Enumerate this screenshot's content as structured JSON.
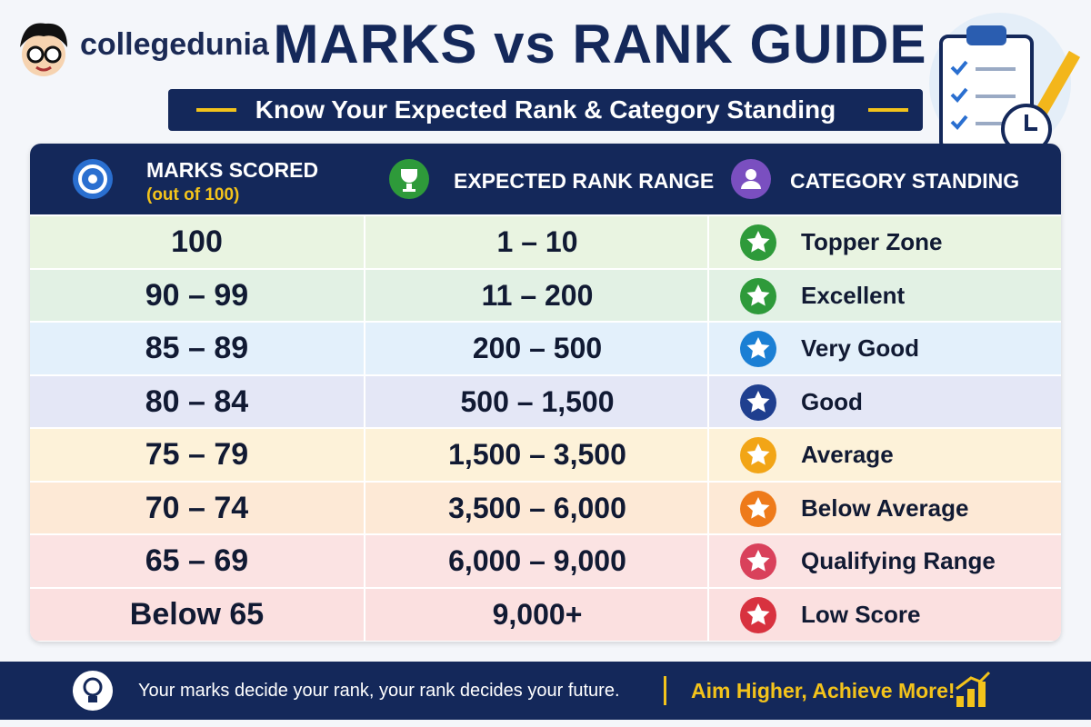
{
  "header": {
    "brand": "collegedunia",
    "title": "MARKS vs RANK GUIDE",
    "subtitle": "Know Your Expected Rank & Category Standing"
  },
  "table": {
    "columns": [
      {
        "label": "MARKS SCORED",
        "note": "(out of 100)"
      },
      {
        "label": "EXPECTED RANK RANGE"
      },
      {
        "label": "CATEGORY STANDING"
      }
    ],
    "rows": [
      [
        "100",
        "1 – 10",
        "Topper Zone"
      ],
      [
        "90 – 99",
        "11 – 200",
        "Excellent"
      ],
      [
        "85 – 89",
        "200 – 500",
        "Very Good"
      ],
      [
        "80 – 84",
        "500 – 1,500",
        "Good"
      ],
      [
        "75 – 79",
        "1,500 – 3,500",
        "Average"
      ],
      [
        "70 – 74",
        "3,500 – 6,000",
        "Below Average"
      ],
      [
        "65 – 69",
        "6,000 – 9,000",
        "Qualifying Range"
      ],
      [
        "Below 65",
        "9,000+",
        "Low Score"
      ]
    ]
  },
  "footer": {
    "tagline": "Your marks decide your rank, your rank decides your future.",
    "slogan": "Aim Higher, Achieve More!"
  }
}
